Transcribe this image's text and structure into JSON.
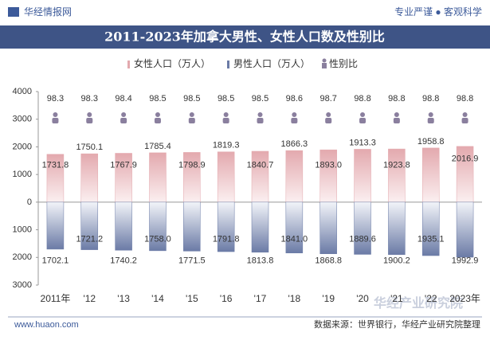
{
  "header": {
    "brand": "华经情报网",
    "slogan": "专业严谨 ● 客观科学"
  },
  "chart_data": {
    "type": "bar",
    "title": "2011-2023年加拿大男性、女性人口数及性别比",
    "categories": [
      "2011年",
      "'12",
      "'13",
      "'14",
      "'15",
      "'16",
      "'17",
      "'18",
      "'19",
      "'20",
      "'21",
      "'22",
      "2023年"
    ],
    "series": [
      {
        "name": "女性人口（万人）",
        "color": "#e3a9ae",
        "values": [
          1731.8,
          1750.1,
          1767.9,
          1785.4,
          1798.9,
          1819.3,
          1840.7,
          1866.3,
          1893.0,
          1913.3,
          1923.8,
          1958.8,
          2016.9
        ],
        "value_labels": [
          "1731.8",
          "1750.1",
          "1767.9",
          "1785.4",
          "1798.9",
          "1819.3",
          "1840.7",
          "1866.3",
          "1893.0",
          "1913.3",
          "1923.8",
          "1958.8",
          "2016.9"
        ]
      },
      {
        "name": "男性人口（万人）",
        "color": "#6b7ba6",
        "mirrored": true,
        "values": [
          1702.1,
          1721.2,
          1740.2,
          1758.0,
          1771.5,
          1791.8,
          1813.8,
          1841.0,
          1868.8,
          1889.6,
          1900.2,
          1935.1,
          1992.9
        ],
        "value_labels": [
          "1702.1",
          "1721.2",
          "1740.2",
          "1758.0",
          "1771.5",
          "1791.8",
          "1813.8",
          "1841.0",
          "1868.8",
          "1889.6",
          "1900.2",
          "1935.1",
          "1992.9"
        ]
      },
      {
        "name": "性别比",
        "color": "#8a7f9e",
        "values": [
          98.3,
          98.3,
          98.4,
          98.5,
          98.5,
          98.5,
          98.5,
          98.6,
          98.7,
          98.8,
          98.8,
          98.8,
          98.8
        ]
      }
    ],
    "ylim": [
      -3000,
      4000
    ],
    "yticks": [
      4000,
      3000,
      2000,
      1000,
      0,
      {
        "value": -1000,
        "label": "1000"
      },
      {
        "value": -2000,
        "label": "2000"
      },
      {
        "value": -3000,
        "label": "3000"
      }
    ],
    "grid": false
  },
  "footer": {
    "site": "www.huaon.com",
    "source": "数据来源：世界银行，华经产业研究院整理",
    "watermark": "华经产业研究院"
  }
}
